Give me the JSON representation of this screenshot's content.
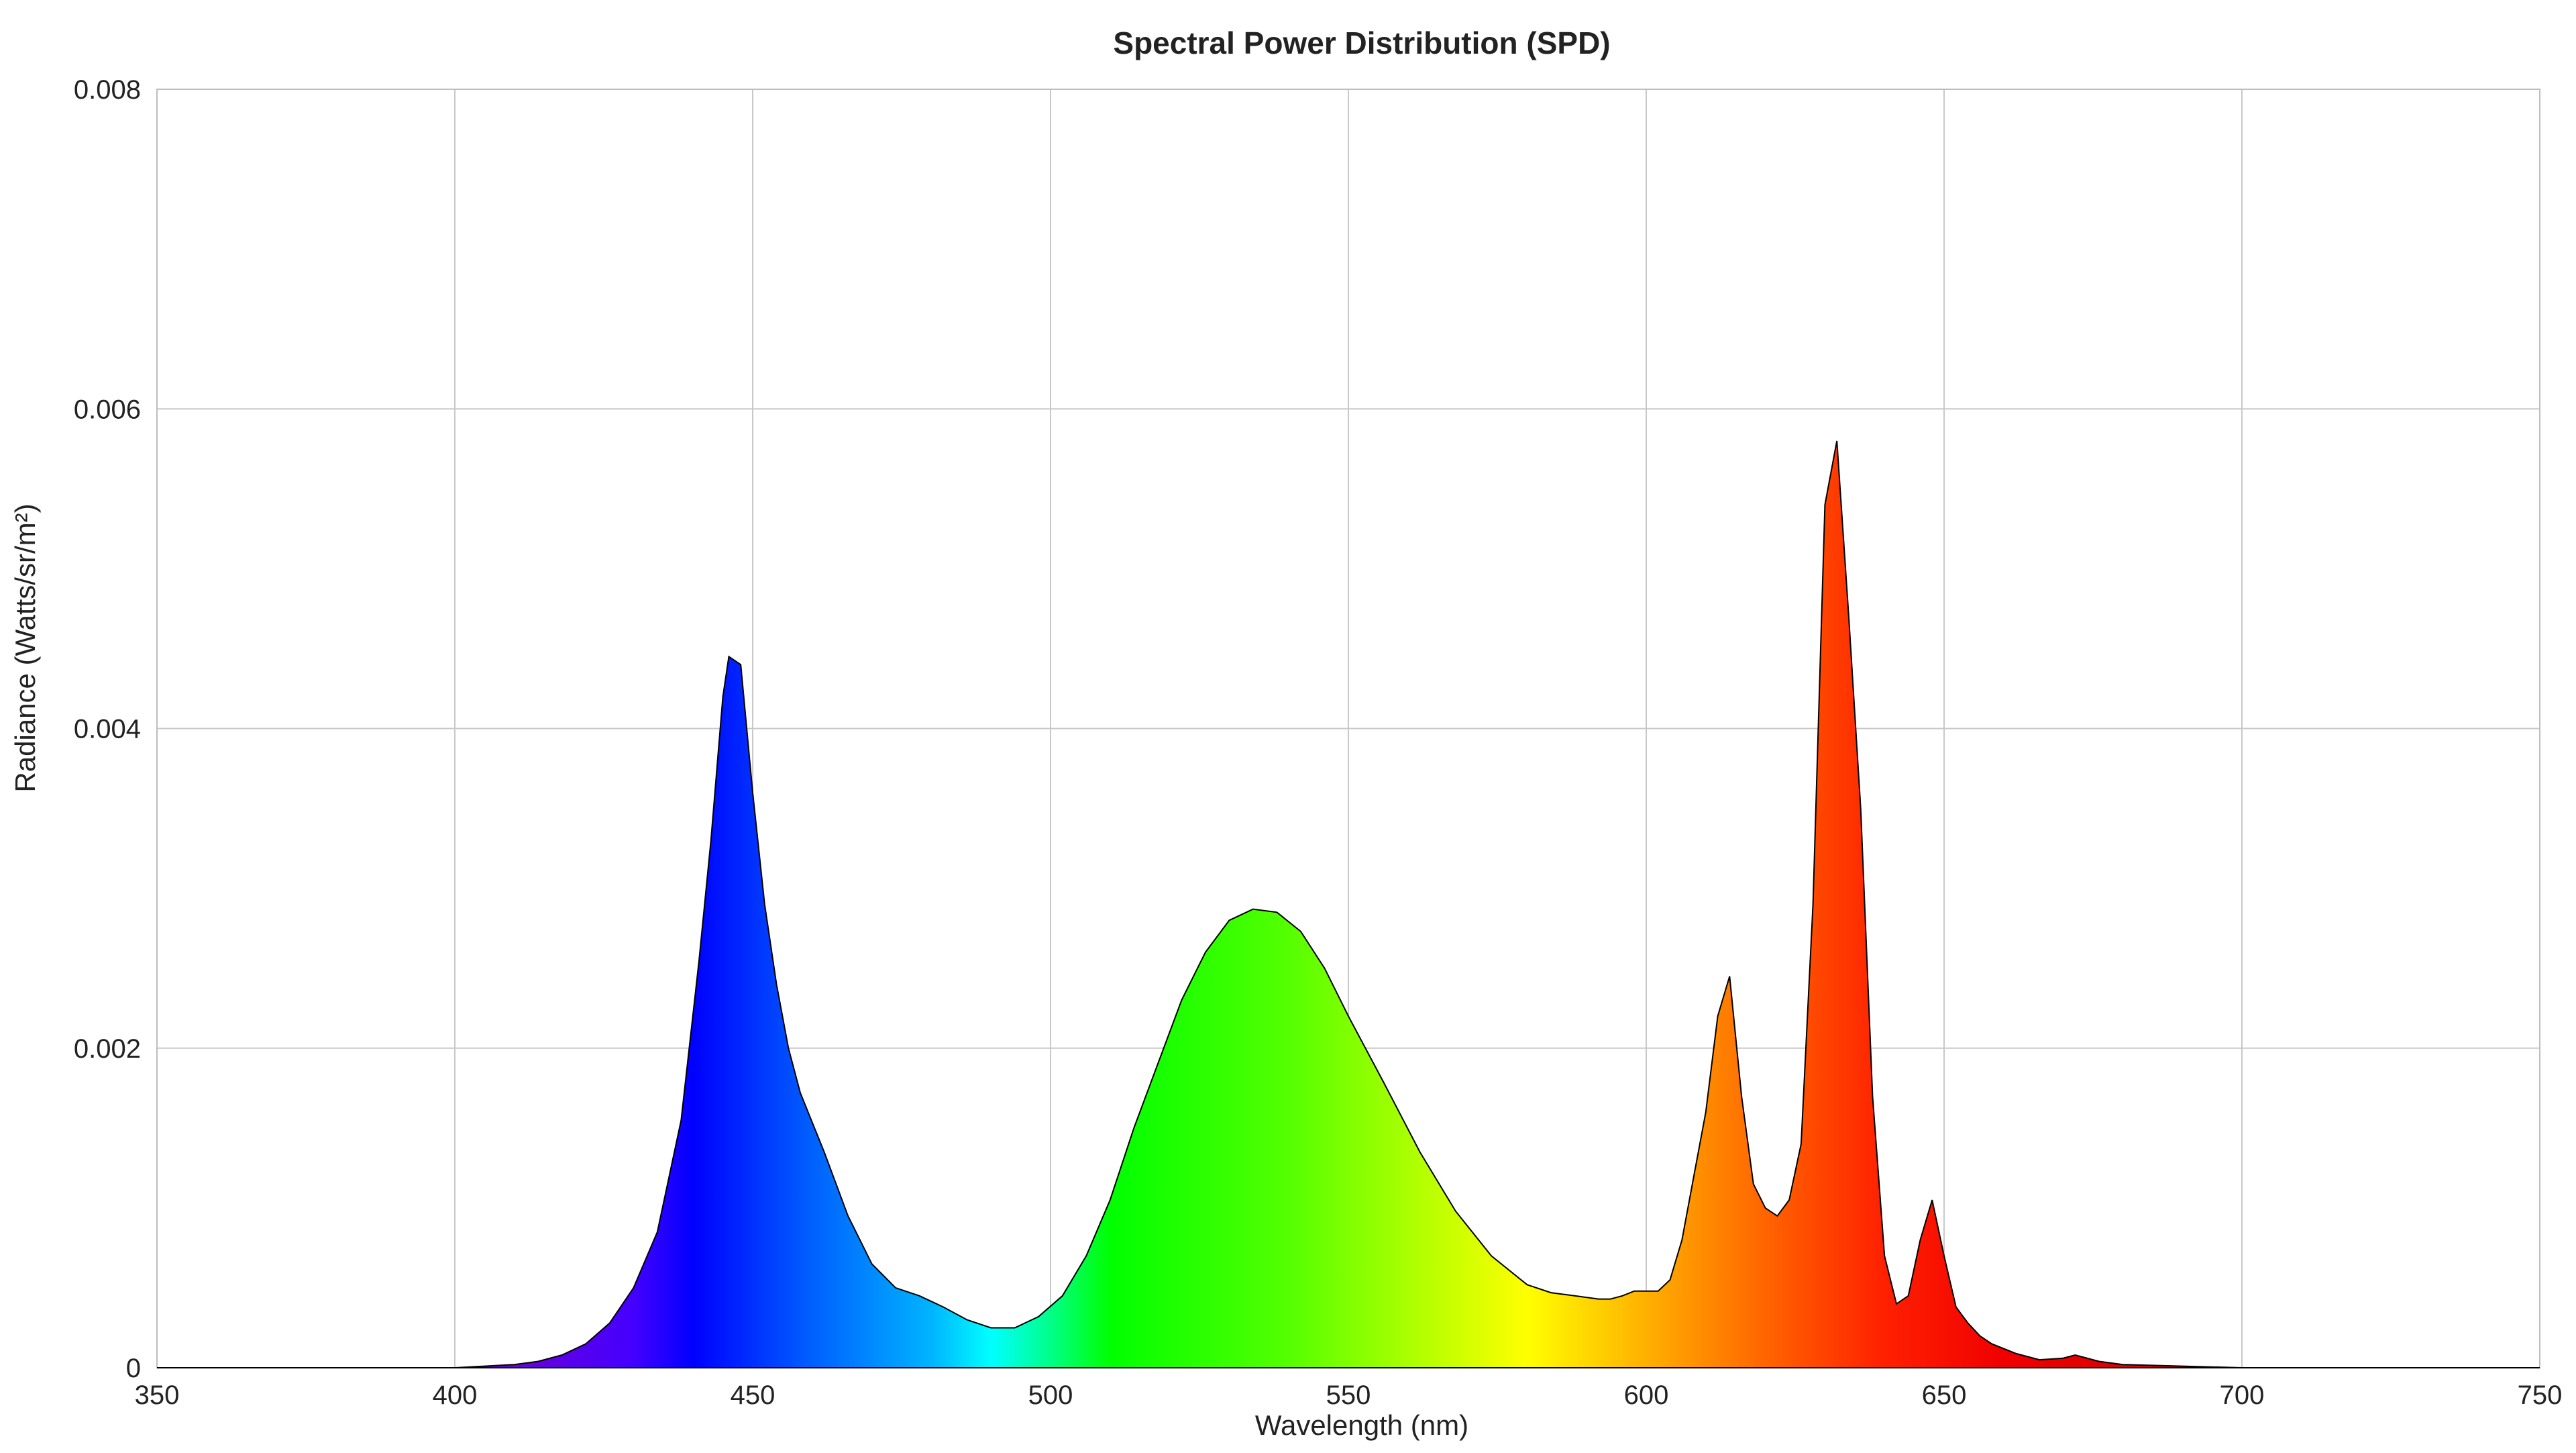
{
  "chart_data": {
    "type": "area",
    "title": "Spectral Power Distribution (SPD)",
    "xlabel": "Wavelength (nm)",
    "ylabel": "Radiance (Watts/sr/m²)",
    "xlim": [
      350,
      750
    ],
    "ylim": [
      0,
      0.008
    ],
    "x_ticks": [
      350,
      400,
      450,
      500,
      550,
      600,
      650,
      700,
      750
    ],
    "x_tick_labels": [
      "350",
      "400",
      "450",
      "500",
      "550",
      "600",
      "650",
      "700",
      "750"
    ],
    "y_ticks": [
      0,
      0.002,
      0.004,
      0.006,
      0.008
    ],
    "y_tick_labels": [
      "0",
      "0.002",
      "0.004",
      "0.006",
      "0.008"
    ],
    "grid": true,
    "fill": "visible-spectrum gradient by wavelength",
    "line_color": "#000000",
    "series": [
      {
        "x": [
          350,
          380,
          400,
          405,
          410,
          414,
          418,
          422,
          426,
          430,
          434,
          438,
          441,
          443,
          445,
          446,
          448,
          450,
          452,
          454,
          456,
          458,
          462,
          466,
          470,
          474,
          478,
          482,
          486,
          490,
          494,
          498,
          502,
          506,
          510,
          514,
          518,
          522,
          526,
          530,
          534,
          538,
          542,
          546,
          550,
          556,
          562,
          568,
          574,
          580,
          584,
          588,
          592,
          594,
          596,
          598,
          600,
          602,
          604,
          606,
          608,
          610,
          612,
          614,
          616,
          618,
          620,
          622,
          624,
          626,
          628,
          630,
          632,
          634,
          636,
          638,
          640,
          642,
          644,
          646,
          648,
          650,
          652,
          654,
          656,
          658,
          660,
          662,
          666,
          670,
          672,
          674,
          676,
          680,
          690,
          700,
          720,
          750
        ],
        "y": [
          0,
          0,
          0,
          1e-05,
          2e-05,
          4e-05,
          8e-05,
          0.00015,
          0.00028,
          0.0005,
          0.00085,
          0.00155,
          0.00255,
          0.0033,
          0.0042,
          0.00445,
          0.0044,
          0.0036,
          0.0029,
          0.0024,
          0.002,
          0.00172,
          0.00135,
          0.00095,
          0.00065,
          0.0005,
          0.00045,
          0.00038,
          0.0003,
          0.00025,
          0.00025,
          0.00032,
          0.00045,
          0.0007,
          0.00105,
          0.0015,
          0.0019,
          0.0023,
          0.0026,
          0.0028,
          0.00287,
          0.00285,
          0.00273,
          0.0025,
          0.0022,
          0.00178,
          0.00135,
          0.00098,
          0.0007,
          0.00052,
          0.00047,
          0.00045,
          0.00043,
          0.00043,
          0.00045,
          0.00048,
          0.00048,
          0.00048,
          0.00055,
          0.0008,
          0.0012,
          0.0016,
          0.0022,
          0.00245,
          0.0017,
          0.00115,
          0.001,
          0.00095,
          0.00105,
          0.0014,
          0.0029,
          0.0054,
          0.0058,
          0.0047,
          0.0035,
          0.0017,
          0.0007,
          0.0004,
          0.00045,
          0.0008,
          0.00105,
          0.0007,
          0.00038,
          0.00028,
          0.0002,
          0.00015,
          0.00012,
          9e-05,
          5e-05,
          6e-05,
          8e-05,
          6e-05,
          4e-05,
          2e-05,
          1e-05,
          0,
          0,
          0
        ]
      }
    ]
  }
}
